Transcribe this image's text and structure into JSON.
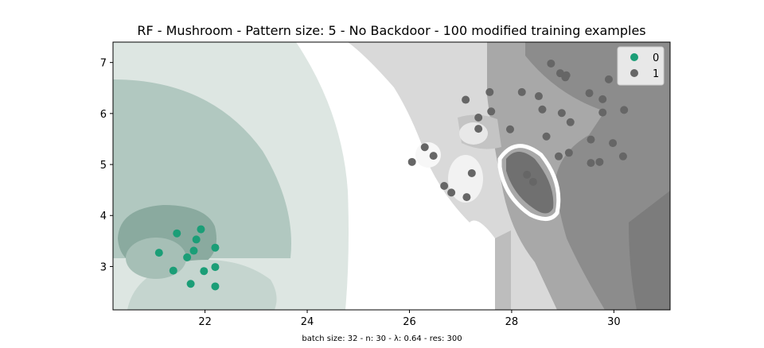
{
  "chart_data": {
    "type": "scatter",
    "title": "RF - Mushroom - Pattern size: 5 - No Backdoor - 100 modified training examples",
    "caption": "batch size: 32 - n: 30 - λ: 0.64 - res: 300",
    "xlim": [
      20.2,
      31.1
    ],
    "ylim": [
      2.15,
      7.4
    ],
    "xticks": [
      22,
      24,
      26,
      28,
      30
    ],
    "yticks": [
      3,
      4,
      5,
      6,
      7
    ],
    "xtick_labels": [
      "22",
      "24",
      "26",
      "28",
      "30"
    ],
    "ytick_labels": [
      "3",
      "4",
      "5",
      "6",
      "7"
    ],
    "grid": false,
    "legend_position": "top-right",
    "background": "decision-region shading (green = class 0, gray = class 1)",
    "series": [
      {
        "name": "0",
        "color": "#1b9e77",
        "points": [
          [
            21.1,
            3.27
          ],
          [
            21.45,
            3.65
          ],
          [
            21.38,
            2.92
          ],
          [
            21.65,
            3.18
          ],
          [
            21.72,
            2.66
          ],
          [
            21.78,
            3.31
          ],
          [
            21.83,
            3.53
          ],
          [
            21.92,
            3.73
          ],
          [
            21.98,
            2.91
          ],
          [
            22.2,
            3.37
          ],
          [
            22.2,
            2.99
          ],
          [
            22.2,
            2.61
          ]
        ]
      },
      {
        "name": "1",
        "color": "#666666",
        "points": [
          [
            26.05,
            5.05
          ],
          [
            26.3,
            5.34
          ],
          [
            26.47,
            5.17
          ],
          [
            26.68,
            4.58
          ],
          [
            26.82,
            4.45
          ],
          [
            27.1,
            6.27
          ],
          [
            27.12,
            4.36
          ],
          [
            27.22,
            4.83
          ],
          [
            27.35,
            5.92
          ],
          [
            27.35,
            5.7
          ],
          [
            27.57,
            6.42
          ],
          [
            27.6,
            6.04
          ],
          [
            27.97,
            5.69
          ],
          [
            28.2,
            6.42
          ],
          [
            28.3,
            4.8
          ],
          [
            28.42,
            4.66
          ],
          [
            28.53,
            6.34
          ],
          [
            28.6,
            6.08
          ],
          [
            28.68,
            5.55
          ],
          [
            28.77,
            6.98
          ],
          [
            28.92,
            5.16
          ],
          [
            28.95,
            6.79
          ],
          [
            28.98,
            6.01
          ],
          [
            29.05,
            6.71
          ],
          [
            29.07,
            6.75
          ],
          [
            29.12,
            5.23
          ],
          [
            29.15,
            5.83
          ],
          [
            29.52,
            6.4
          ],
          [
            29.55,
            5.49
          ],
          [
            29.55,
            5.03
          ],
          [
            29.72,
            5.05
          ],
          [
            29.78,
            6.28
          ],
          [
            29.78,
            6.02
          ],
          [
            29.9,
            6.67
          ],
          [
            29.98,
            5.42
          ],
          [
            30.18,
            5.16
          ],
          [
            30.2,
            6.07
          ]
        ]
      }
    ]
  }
}
